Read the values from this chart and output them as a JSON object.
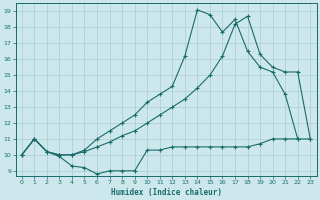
{
  "xlabel": "Humidex (Indice chaleur)",
  "bg_color": "#cce8ec",
  "grid_color": "#aacccc",
  "line_color": "#1a6b6b",
  "xlim": [
    -0.5,
    23.5
  ],
  "ylim": [
    8.7,
    19.5
  ],
  "xticks": [
    0,
    1,
    2,
    3,
    4,
    5,
    6,
    7,
    8,
    9,
    10,
    11,
    12,
    13,
    14,
    15,
    16,
    17,
    18,
    19,
    20,
    21,
    22,
    23
  ],
  "yticks": [
    9,
    10,
    11,
    12,
    13,
    14,
    15,
    16,
    17,
    18,
    19
  ],
  "line1_x": [
    0,
    1,
    2,
    3,
    4,
    5,
    6,
    7,
    8,
    9,
    10,
    11,
    12,
    13,
    14,
    15,
    16,
    17,
    18,
    19,
    20,
    21,
    22,
    23
  ],
  "line1_y": [
    10.0,
    11.0,
    10.2,
    9.9,
    9.3,
    9.2,
    8.8,
    9.0,
    9.0,
    9.0,
    10.3,
    10.3,
    10.5,
    10.5,
    10.5,
    10.5,
    10.5,
    10.5,
    10.5,
    10.7,
    11.0,
    11.0,
    11.0,
    11.0
  ],
  "line2_x": [
    0,
    1,
    2,
    3,
    4,
    5,
    6,
    7,
    8,
    9,
    10,
    11,
    12,
    13,
    14,
    15,
    16,
    17,
    18,
    19,
    20,
    21,
    22,
    23
  ],
  "line2_y": [
    10.0,
    11.0,
    10.2,
    10.0,
    10.0,
    10.2,
    10.5,
    10.8,
    11.2,
    11.5,
    12.0,
    12.5,
    13.0,
    13.5,
    14.2,
    15.0,
    16.2,
    18.2,
    18.7,
    16.3,
    15.5,
    15.2,
    15.2,
    11.0
  ],
  "line3_x": [
    0,
    1,
    2,
    3,
    4,
    5,
    6,
    7,
    8,
    9,
    10,
    11,
    12,
    13,
    14,
    15,
    16,
    17,
    18,
    19,
    20,
    21,
    22,
    23
  ],
  "line3_y": [
    10.0,
    11.0,
    10.2,
    10.0,
    10.0,
    10.3,
    11.0,
    11.5,
    12.0,
    12.5,
    13.3,
    13.8,
    14.3,
    16.2,
    19.1,
    18.8,
    17.7,
    18.5,
    16.5,
    15.5,
    15.2,
    13.8,
    11.0,
    null
  ]
}
